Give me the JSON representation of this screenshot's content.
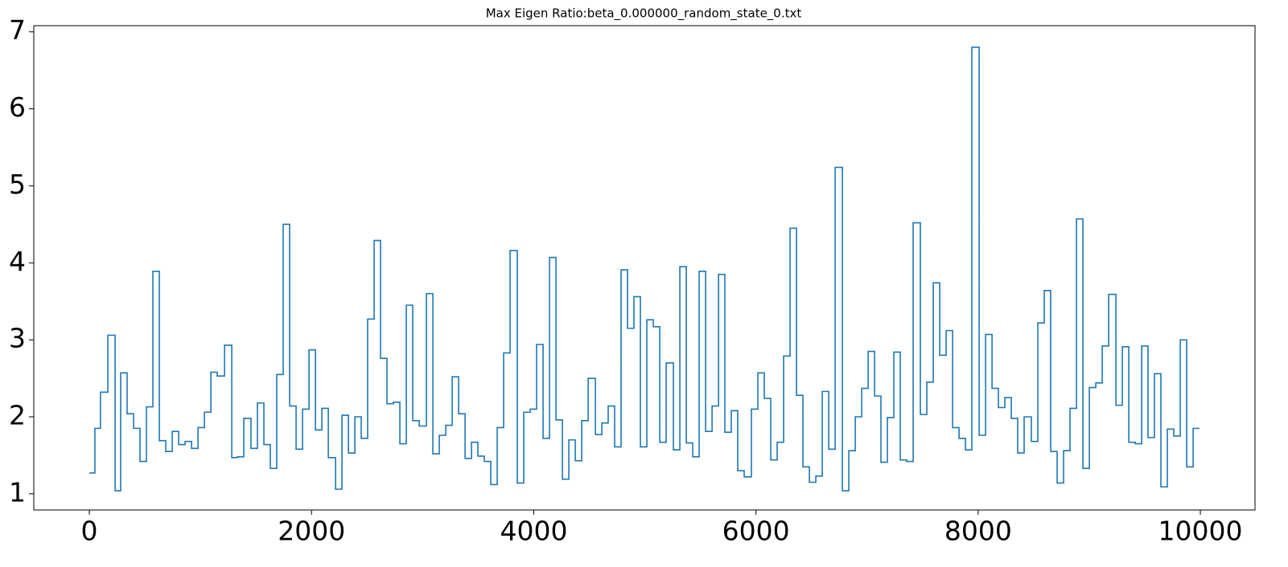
{
  "chart_data": {
    "type": "step",
    "title": "Max Eigen Ratio:beta_0.000000_random_state_0.txt",
    "color": "#1f77b4",
    "x": [
      0,
      50,
      100,
      167,
      232,
      282,
      340,
      398,
      456,
      514,
      572,
      630,
      688,
      746,
      804,
      862,
      920,
      978,
      1036,
      1094,
      1151,
      1217,
      1282,
      1332,
      1390,
      1455,
      1513,
      1571,
      1629,
      1687,
      1745,
      1803,
      1861,
      1919,
      1977,
      2035,
      2093,
      2151,
      2216,
      2274,
      2332,
      2390,
      2447,
      2505,
      2563,
      2621,
      2679,
      2737,
      2795,
      2853,
      2911,
      2969,
      3034,
      3092,
      3150,
      3208,
      3266,
      3324,
      3382,
      3440,
      3497,
      3555,
      3613,
      3671,
      3729,
      3787,
      3852,
      3910,
      3968,
      4026,
      4084,
      4142,
      4200,
      4258,
      4316,
      4374,
      4432,
      4490,
      4555,
      4613,
      4670,
      4728,
      4786,
      4844,
      4902,
      4960,
      5018,
      5076,
      5134,
      5192,
      5257,
      5315,
      5373,
      5431,
      5489,
      5547,
      5605,
      5663,
      5720,
      5778,
      5836,
      5894,
      5959,
      6017,
      6075,
      6133,
      6191,
      6249,
      6307,
      6365,
      6423,
      6481,
      6539,
      6597,
      6655,
      6713,
      6778,
      6836,
      6894,
      6952,
      7010,
      7068,
      7125,
      7183,
      7241,
      7299,
      7357,
      7415,
      7480,
      7538,
      7596,
      7654,
      7712,
      7770,
      7828,
      7886,
      7943,
      8009,
      8067,
      8125,
      8182,
      8240,
      8298,
      8356,
      8414,
      8479,
      8537,
      8595,
      8653,
      8711,
      8769,
      8827,
      8885,
      8943,
      9001,
      9059,
      9117,
      9175,
      9240,
      9298,
      9356,
      9414,
      9472,
      9529,
      9587,
      9645,
      9703,
      9761,
      9819,
      9877,
      9935,
      9993
    ],
    "values": [
      1.27,
      1.85,
      2.32,
      3.06,
      1.04,
      2.57,
      2.04,
      1.85,
      1.42,
      2.13,
      3.89,
      1.69,
      1.55,
      1.81,
      1.64,
      1.68,
      1.59,
      1.86,
      2.06,
      2.58,
      2.53,
      2.93,
      1.47,
      1.48,
      1.98,
      1.59,
      2.18,
      1.64,
      1.33,
      2.55,
      4.5,
      2.14,
      1.58,
      2.1,
      2.87,
      1.83,
      2.11,
      1.47,
      1.06,
      2.02,
      1.53,
      2.0,
      1.72,
      3.27,
      4.29,
      2.76,
      2.17,
      2.19,
      1.65,
      3.45,
      1.95,
      1.88,
      3.6,
      1.52,
      1.76,
      1.89,
      2.52,
      2.04,
      1.46,
      1.67,
      1.49,
      1.42,
      1.12,
      1.86,
      2.83,
      4.16,
      1.14,
      2.06,
      2.1,
      2.94,
      1.72,
      4.07,
      1.96,
      1.19,
      1.7,
      1.43,
      1.95,
      2.5,
      1.77,
      1.92,
      2.14,
      1.61,
      3.91,
      3.15,
      3.56,
      1.61,
      3.26,
      3.17,
      1.67,
      2.7,
      1.57,
      3.95,
      1.66,
      1.48,
      3.89,
      1.81,
      2.14,
      3.85,
      1.8,
      2.08,
      1.3,
      1.22,
      2.1,
      2.57,
      2.24,
      1.44,
      1.67,
      2.79,
      4.45,
      2.28,
      1.35,
      1.15,
      1.23,
      2.33,
      1.58,
      5.24,
      1.04,
      1.56,
      2.0,
      2.37,
      2.85,
      2.27,
      1.41,
      1.99,
      2.84,
      1.44,
      1.42,
      4.52,
      2.03,
      2.45,
      3.74,
      2.8,
      3.12,
      1.86,
      1.72,
      1.57,
      6.8,
      1.76,
      3.07,
      2.37,
      2.12,
      2.25,
      1.98,
      1.53,
      2.0,
      1.68,
      3.22,
      3.64,
      1.55,
      1.14,
      1.56,
      2.11,
      4.57,
      1.33,
      2.38,
      2.44,
      2.92,
      3.59,
      2.15,
      2.91,
      1.67,
      1.65,
      2.92,
      1.73,
      2.56,
      1.09,
      1.84,
      1.75,
      3.0,
      1.35,
      1.85,
      1.85
    ],
    "xlim": [
      -500,
      10492
    ],
    "xticks": [
      0,
      2000,
      4000,
      6000,
      8000,
      10000
    ],
    "ylim": [
      0.79,
      7.08
    ],
    "yticks": [
      1,
      2,
      3,
      4,
      5,
      6,
      7
    ]
  }
}
